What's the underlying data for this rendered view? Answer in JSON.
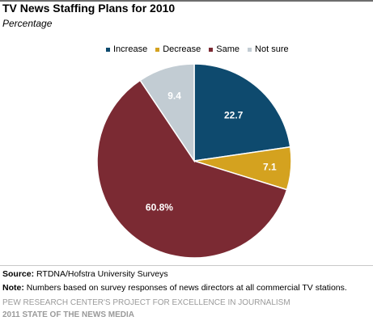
{
  "header": {
    "title": "TV News  Staffing  Plans for 2010",
    "subtitle": "Percentage"
  },
  "chart_data": {
    "type": "pie",
    "title": "TV News  Staffing  Plans for 2010",
    "subtitle": "Percentage",
    "legend_position": "top",
    "slices": [
      {
        "label": "Increase",
        "value": 22.7,
        "display": "22.7",
        "color": "#0e4a6e"
      },
      {
        "label": "Decrease",
        "value": 7.1,
        "display": "7.1",
        "color": "#d4a21f"
      },
      {
        "label": "Same",
        "value": 60.8,
        "display": "60.8%",
        "color": "#7b2a33"
      },
      {
        "label": "Not sure",
        "value": 9.4,
        "display": "9.4",
        "color": "#c2ccd3"
      }
    ]
  },
  "footer": {
    "source_label": "Source:",
    "source_text": " RTDNA/Hofstra University Surveys",
    "note_label": "Note:",
    "note_text": " Numbers based on survey responses of news directors at all commercial TV stations.",
    "org": "PEW RESEARCH CENTER'S PROJECT FOR EXCELLENCE IN JOURNALISM",
    "report": "2011 STATE OF THE NEWS MEDIA"
  }
}
